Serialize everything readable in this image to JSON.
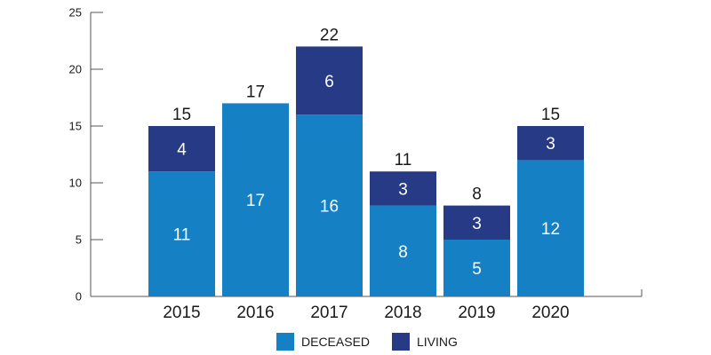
{
  "chart_data": {
    "type": "bar",
    "stacked": true,
    "categories": [
      "2015",
      "2016",
      "2017",
      "2018",
      "2019",
      "2020"
    ],
    "series": [
      {
        "name": "DECEASED",
        "values": [
          11,
          17,
          16,
          8,
          5,
          12
        ],
        "color": "#1580c3"
      },
      {
        "name": "LIVING",
        "values": [
          4,
          0,
          6,
          3,
          3,
          3
        ],
        "color": "#263a86"
      }
    ],
    "totals": [
      15,
      17,
      22,
      11,
      8,
      15
    ],
    "ylim": [
      0,
      25
    ],
    "yticks": [
      0,
      5,
      10,
      15,
      20,
      25
    ],
    "title": "",
    "xlabel": "",
    "ylabel": "",
    "legend_position": "bottom",
    "grid": false
  }
}
